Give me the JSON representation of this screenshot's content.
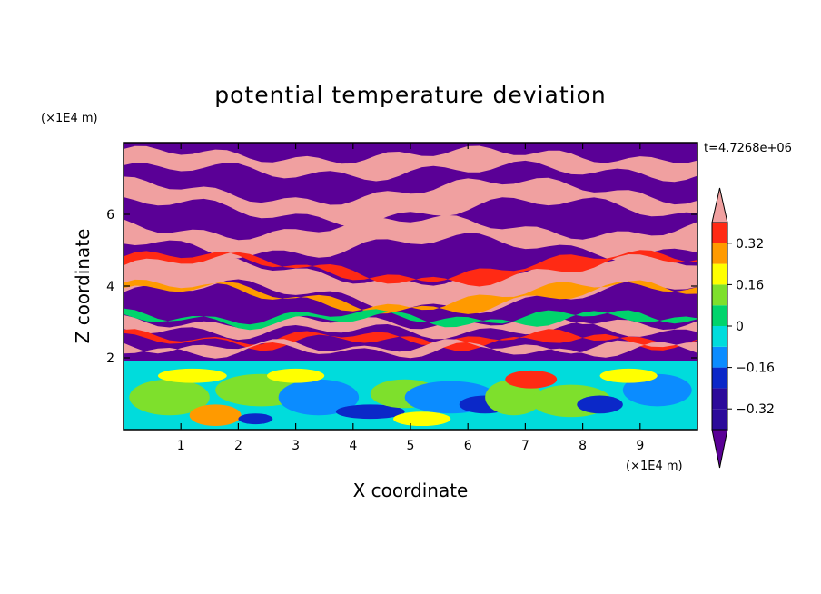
{
  "chart_data": {
    "type": "heatmap",
    "title": "potential temperature deviation",
    "xlabel": "X coordinate",
    "ylabel": "Z coordinate",
    "x_unit": "(×1E4 m)",
    "y_unit": "(×1E4 m)",
    "time_label": "t=4.7268e+06",
    "xlim": [
      0,
      10
    ],
    "ylim": [
      0,
      8
    ],
    "x_ticks": [
      1,
      2,
      3,
      4,
      5,
      6,
      7,
      8,
      9
    ],
    "y_ticks": [
      2,
      4,
      6
    ],
    "colorbar": {
      "levels": [
        -0.4,
        -0.32,
        -0.24,
        -0.16,
        -0.08,
        0,
        0.08,
        0.16,
        0.24,
        0.32,
        0.4
      ],
      "tick_labels": [
        "0.32",
        "0.16",
        "0",
        "−0.16",
        "−0.32"
      ],
      "tick_values": [
        0.32,
        0.16,
        0,
        -0.16,
        -0.32
      ],
      "colors": [
        "#5a0096",
        "#2c0a9a",
        "#0b28c8",
        "#0b8cff",
        "#00dcdc",
        "#00d46c",
        "#7ee02c",
        "#ffff00",
        "#ff9a00",
        "#ff2a14",
        "#f0a0a0"
      ],
      "extend": "both"
    }
  }
}
